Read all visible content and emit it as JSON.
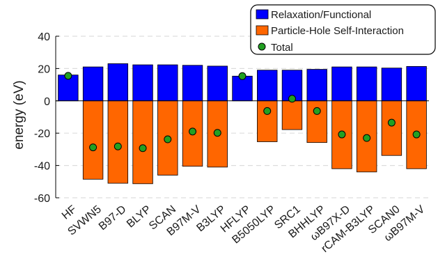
{
  "chart_data": {
    "type": "bar",
    "title": "",
    "xlabel": "",
    "ylabel": "energy (eV)",
    "ylim": [
      -60,
      40
    ],
    "yticks": [
      40,
      20,
      0,
      -20,
      -40,
      -60
    ],
    "grid": "horizontal dashed",
    "legend_position": "top-right",
    "categories": [
      "HF",
      "SVWN5",
      "B97-D",
      "BLYP",
      "SCAN",
      "B97M-V",
      "B3LYP",
      "HFLYP",
      "B5050LYP",
      "SRC1",
      "BHHLYP",
      "ωB97X-D",
      "rCAM-B3LYP",
      "SCAN0",
      "ωB97M-V"
    ],
    "series": [
      {
        "name": "Relaxation/Functional",
        "kind": "bar",
        "color": "#0000ff",
        "values": [
          16,
          21,
          23,
          22.3,
          22.3,
          22,
          21.5,
          15.3,
          19,
          19,
          19.5,
          21,
          21,
          20.3,
          21.3
        ]
      },
      {
        "name": "Particle-Hole Self-Interaction",
        "kind": "bar",
        "color": "#ff6600",
        "values": [
          0,
          -48.5,
          -51,
          -51.3,
          -46,
          -40.5,
          -41,
          0,
          -25.3,
          -17.8,
          -25.8,
          -42,
          -44,
          -33.8,
          -42
        ]
      },
      {
        "name": "Total",
        "kind": "marker",
        "color": "#22a022",
        "values": [
          15.5,
          -28.8,
          -28.2,
          -29.3,
          -23.8,
          -19,
          -19.8,
          15.3,
          -6.3,
          1.3,
          -6.3,
          -20.8,
          -23,
          -13.5,
          -20.8
        ]
      }
    ]
  }
}
